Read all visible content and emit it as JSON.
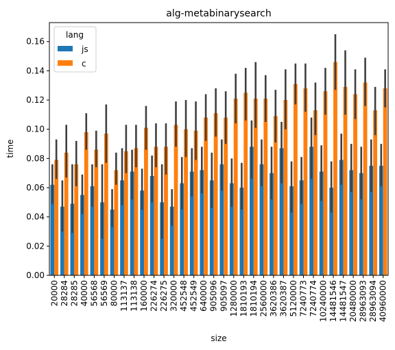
{
  "chart_data": {
    "type": "bar",
    "title": "alg-metabinarysearch",
    "xlabel": "size",
    "ylabel": "time",
    "ylim": [
      0,
      0.173
    ],
    "yticks": [
      "0.00",
      "0.02",
      "0.04",
      "0.06",
      "0.08",
      "0.10",
      "0.12",
      "0.14",
      "0.16"
    ],
    "ytick_values": [
      0,
      0.02,
      0.04,
      0.06,
      0.08,
      0.1,
      0.12,
      0.14,
      0.16
    ],
    "legend": {
      "title": "lang",
      "placement": "top-left"
    },
    "categories": [
      "20000",
      "28284",
      "28285",
      "40000",
      "56568",
      "56569",
      "80000",
      "113137",
      "113138",
      "160000",
      "226274",
      "226275",
      "320000",
      "452548",
      "452549",
      "640000",
      "905096",
      "905097",
      "1280000",
      "1810193",
      "1810194",
      "2560000",
      "3620386",
      "3620387",
      "5120000",
      "7240773",
      "7240774",
      "10240000",
      "14481546",
      "14481547",
      "20480000",
      "28963093",
      "28963094",
      "40960000"
    ],
    "series": [
      {
        "name": "js",
        "color": "#1f77b4",
        "values": [
          0.062,
          0.047,
          0.049,
          0.055,
          0.061,
          0.05,
          0.045,
          0.065,
          0.071,
          0.058,
          0.068,
          0.05,
          0.047,
          0.063,
          0.071,
          0.072,
          0.065,
          0.076,
          0.063,
          0.06,
          0.088,
          0.076,
          0.07,
          0.087,
          0.061,
          0.065,
          0.088,
          0.071,
          0.06,
          0.079,
          0.072,
          0.07,
          0.075,
          0.075
        ],
        "err_low": [
          0.049,
          0.03,
          0.029,
          0.042,
          0.047,
          0.025,
          0.033,
          0.048,
          0.052,
          0.045,
          0.05,
          0.025,
          0.034,
          0.045,
          0.054,
          0.056,
          0.046,
          0.058,
          0.047,
          0.045,
          0.066,
          0.061,
          0.052,
          0.063,
          0.043,
          0.049,
          0.066,
          0.051,
          0.043,
          0.062,
          0.057,
          0.052,
          0.057,
          0.061
        ],
        "err_high": [
          0.076,
          0.065,
          0.076,
          0.069,
          0.076,
          0.076,
          0.059,
          0.087,
          0.086,
          0.073,
          0.082,
          0.076,
          0.059,
          0.081,
          0.087,
          0.088,
          0.084,
          0.093,
          0.08,
          0.077,
          0.106,
          0.093,
          0.088,
          0.105,
          0.078,
          0.081,
          0.108,
          0.089,
          0.078,
          0.097,
          0.09,
          0.088,
          0.093,
          0.09
        ]
      },
      {
        "name": "c",
        "color": "#ff7f0e",
        "values": [
          0.079,
          0.084,
          0.076,
          0.098,
          0.086,
          0.097,
          0.072,
          0.085,
          0.087,
          0.101,
          0.088,
          0.088,
          0.103,
          0.1,
          0.099,
          0.108,
          0.111,
          0.108,
          0.121,
          0.125,
          0.121,
          0.121,
          0.109,
          0.12,
          0.131,
          0.128,
          0.113,
          0.126,
          0.146,
          0.129,
          0.124,
          0.132,
          0.113,
          0.128
        ],
        "err_low": [
          0.066,
          0.067,
          0.061,
          0.086,
          0.074,
          0.077,
          0.062,
          0.07,
          0.074,
          0.086,
          0.074,
          0.069,
          0.088,
          0.081,
          0.079,
          0.092,
          0.095,
          0.09,
          0.104,
          0.106,
          0.101,
          0.105,
          0.091,
          0.1,
          0.117,
          0.112,
          0.096,
          0.11,
          0.127,
          0.11,
          0.107,
          0.116,
          0.096,
          0.115
        ]
      }
    ],
    "c_err_high": [
      0.093,
      0.103,
      0.092,
      0.111,
      0.099,
      0.117,
      0.084,
      0.103,
      0.103,
      0.116,
      0.104,
      0.104,
      0.119,
      0.12,
      0.119,
      0.124,
      0.128,
      0.126,
      0.138,
      0.142,
      0.146,
      0.137,
      0.127,
      0.141,
      0.145,
      0.145,
      0.132,
      0.142,
      0.165,
      0.154,
      0.141,
      0.149,
      0.129,
      0.141
    ]
  }
}
